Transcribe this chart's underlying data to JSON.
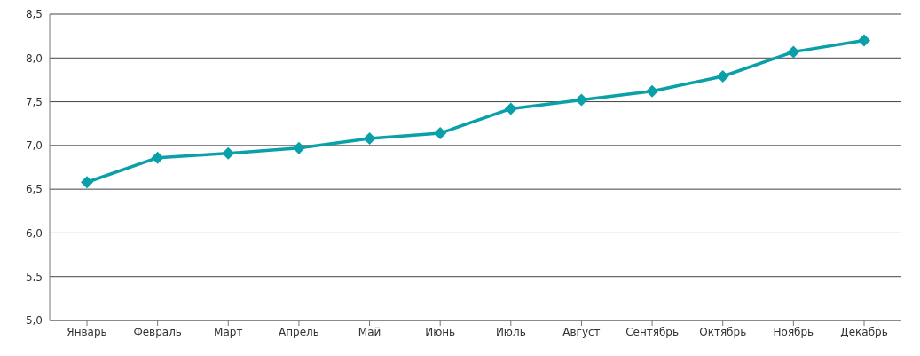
{
  "chart_data": {
    "type": "line",
    "categories": [
      "Январь",
      "Февраль",
      "Март",
      "Апрель",
      "Май",
      "Июнь",
      "Июль",
      "Август",
      "Сентябрь",
      "Октябрь",
      "Ноябрь",
      "Декабрь"
    ],
    "series": [
      {
        "color": "#0aa0aa",
        "values": [
          6.58,
          6.86,
          6.91,
          6.97,
          7.08,
          7.14,
          7.42,
          7.52,
          7.62,
          7.79,
          8.07,
          8.2
        ]
      }
    ],
    "ylim": [
      5,
      8.5
    ],
    "yticks": [
      {
        "value": 5,
        "label": "5,0"
      },
      {
        "value": 5.5,
        "label": "5,5"
      },
      {
        "value": 6,
        "label": "6,0"
      },
      {
        "value": 6.5,
        "label": "6,5"
      },
      {
        "value": 7,
        "label": "7,0"
      },
      {
        "value": 7.5,
        "label": "7,5"
      },
      {
        "value": 8,
        "label": "8,0"
      },
      {
        "value": 8.5,
        "label": "8,5"
      }
    ],
    "grid": "y",
    "marker": "diamond",
    "line_style": "solid",
    "legend": false
  }
}
